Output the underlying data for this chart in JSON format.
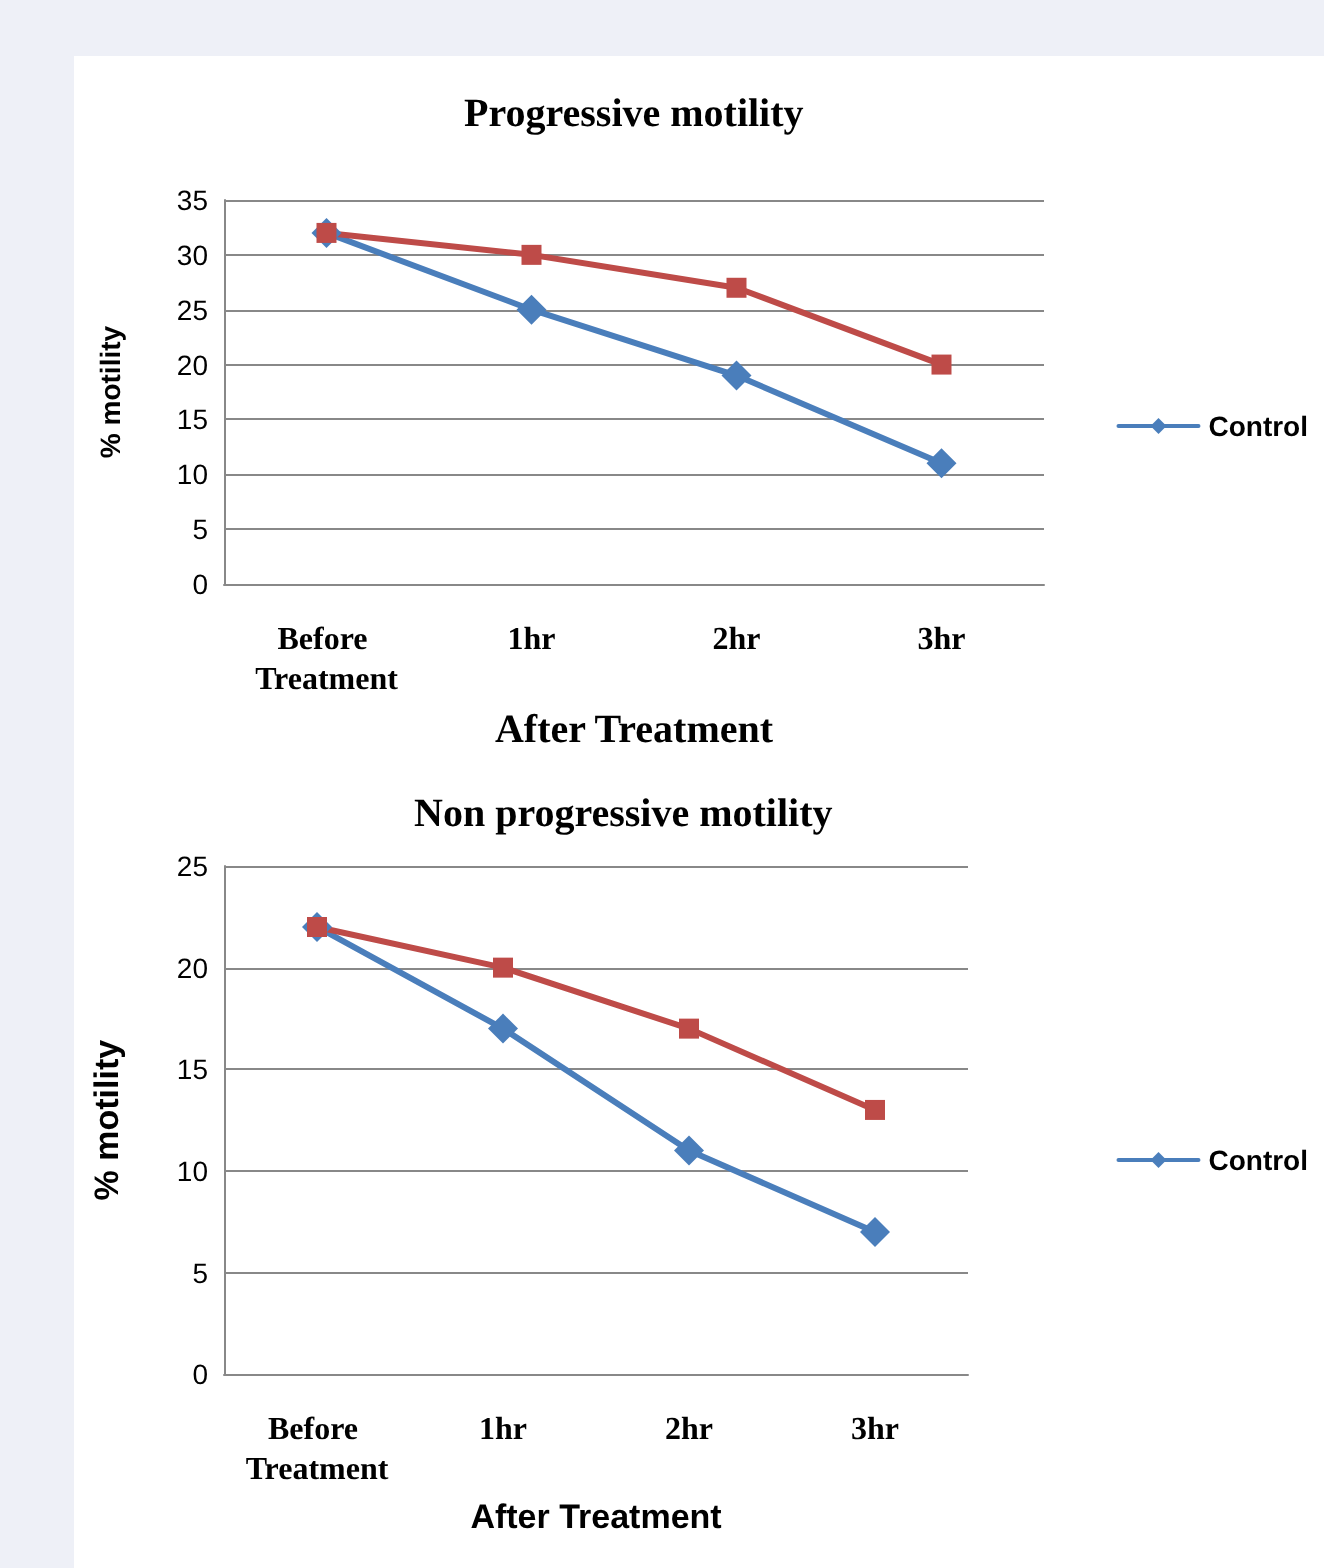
{
  "chart_data": [
    {
      "type": "line",
      "title": "Progressive motility",
      "ylabel": "% motility",
      "xlabel": "After Treatment",
      "categories": [
        "Before Treatment",
        "1hr",
        "2hr",
        "3hr"
      ],
      "series": [
        {
          "name": "Control",
          "color": "#4a7ebb",
          "values": [
            32,
            25,
            19,
            11
          ],
          "marker": "diamond"
        },
        {
          "color": "#be4b48",
          "values": [
            32,
            30,
            27,
            20
          ],
          "marker": "square"
        }
      ],
      "ylim": [
        0,
        35
      ],
      "yticks": [
        0,
        5,
        10,
        15,
        20,
        25,
        30,
        35
      ],
      "grid": "y",
      "legend": "right"
    },
    {
      "type": "line",
      "title": "Non progressive motility",
      "ylabel": "% motility",
      "xlabel": "After Treatment",
      "categories": [
        "Before Treatment",
        "1hr",
        "2hr",
        "3hr"
      ],
      "series": [
        {
          "name": "Control",
          "color": "#4a7ebb",
          "values": [
            22,
            17,
            11,
            7
          ],
          "marker": "diamond"
        },
        {
          "color": "#be4b48",
          "values": [
            22,
            20,
            17,
            13
          ],
          "marker": "square"
        }
      ],
      "ylim": [
        0,
        25
      ],
      "yticks": [
        0,
        5,
        10,
        15,
        20,
        25
      ],
      "grid": "y",
      "legend": "right"
    }
  ]
}
